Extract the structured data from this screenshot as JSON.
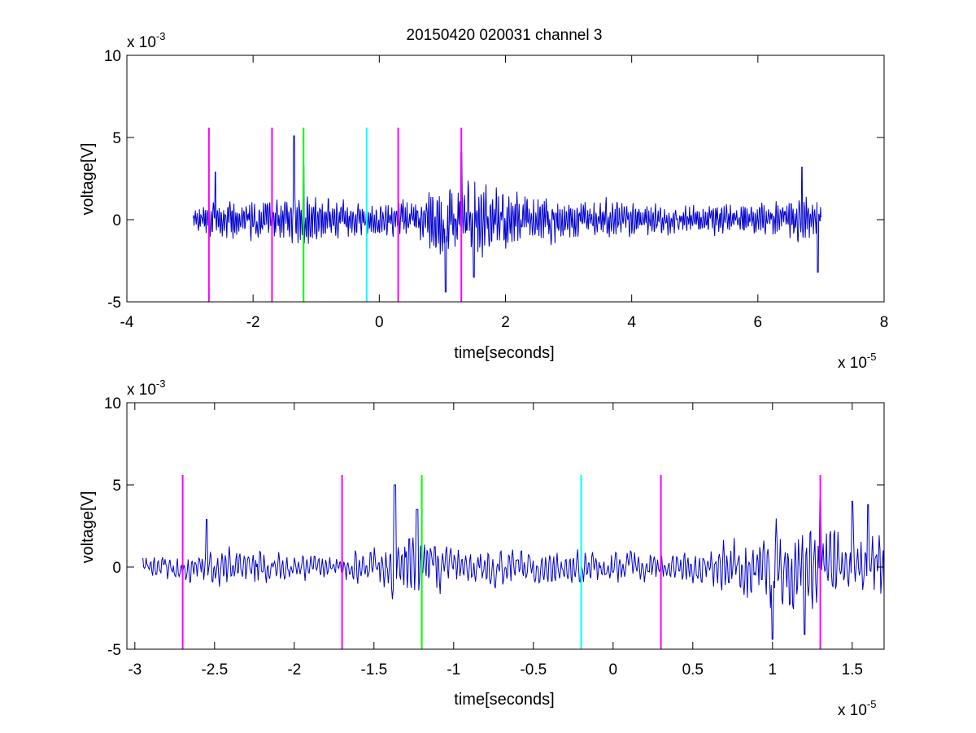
{
  "figure": {
    "title": "20150420 020031 channel 3"
  },
  "chart_data": [
    {
      "type": "line",
      "title": "20150420 020031 channel 3",
      "xlabel": "time[seconds]",
      "ylabel": "voltage[V]",
      "x_multiplier": "x 10",
      "x_multiplier_exp": "-5",
      "y_multiplier": "x 10",
      "y_multiplier_exp": "-3",
      "xlim": [
        -4,
        8
      ],
      "ylim": [
        -5,
        10
      ],
      "xticks": [
        -4,
        -2,
        0,
        2,
        4,
        6,
        8
      ],
      "xtick_labels": [
        "-4",
        "-2",
        "0",
        "2",
        "4",
        "6",
        "8"
      ],
      "yticks": [
        -5,
        0,
        5,
        10
      ],
      "ytick_labels": [
        "-5",
        "0",
        "5",
        "10"
      ],
      "grid": false,
      "series": [
        {
          "color": "#0000cc",
          "x_start": -2.95,
          "x_end": 7.0,
          "envelope": [
            [
              -2.95,
              1.2
            ],
            [
              -2.5,
              2.0
            ],
            [
              -2.0,
              1.8
            ],
            [
              -1.6,
              2.0
            ],
            [
              -1.3,
              2.5
            ],
            [
              -1.0,
              2.2
            ],
            [
              -0.5,
              1.7
            ],
            [
              0.0,
              1.5
            ],
            [
              0.5,
              1.8
            ],
            [
              0.8,
              2.8
            ],
            [
              1.0,
              3.8
            ],
            [
              1.3,
              3.6
            ],
            [
              1.8,
              3.0
            ],
            [
              2.5,
              2.2
            ],
            [
              3.5,
              1.8
            ],
            [
              4.5,
              1.3
            ],
            [
              5.5,
              1.5
            ],
            [
              6.3,
              1.5
            ],
            [
              6.7,
              2.3
            ],
            [
              7.0,
              2.0
            ]
          ],
          "peaks": [
            [
              -2.6,
              2.9
            ],
            [
              -1.35,
              5.1
            ],
            [
              -1.2,
              3.3
            ],
            [
              1.3,
              4.1
            ],
            [
              1.05,
              -4.4
            ],
            [
              1.5,
              -3.5
            ],
            [
              6.7,
              3.2
            ],
            [
              6.95,
              -3.2
            ]
          ]
        }
      ],
      "markers": [
        {
          "x": -2.7,
          "color": "#ff00ff"
        },
        {
          "x": -1.7,
          "color": "#ff00ff"
        },
        {
          "x": -1.2,
          "color": "#00ff00"
        },
        {
          "x": -0.2,
          "color": "#00ffff"
        },
        {
          "x": 0.3,
          "color": "#ff00ff"
        },
        {
          "x": 1.3,
          "color": "#ff00ff"
        }
      ],
      "marker_range": [
        -5,
        5.6
      ]
    },
    {
      "type": "line",
      "title": "",
      "xlabel": "time[seconds]",
      "ylabel": "voltage[V]",
      "x_multiplier": "x 10",
      "x_multiplier_exp": "-5",
      "y_multiplier": "x 10",
      "y_multiplier_exp": "-3",
      "xlim": [
        -3.05,
        1.7
      ],
      "ylim": [
        -5,
        10
      ],
      "xticks": [
        -3,
        -2.5,
        -2,
        -1.5,
        -1,
        -0.5,
        0,
        0.5,
        1,
        1.5
      ],
      "xtick_labels": [
        "-3",
        "-2.5",
        "-2",
        "-1.5",
        "-1",
        "-0.5",
        "0",
        "0.5",
        "1",
        "1.5"
      ],
      "yticks": [
        -5,
        0,
        5,
        10
      ],
      "ytick_labels": [
        "-5",
        "0",
        "5",
        "10"
      ],
      "grid": false,
      "series": [
        {
          "color": "#0000cc",
          "x_start": -2.95,
          "x_end": 1.7,
          "envelope": [
            [
              -2.95,
              1.0
            ],
            [
              -2.6,
              1.5
            ],
            [
              -2.4,
              2.2
            ],
            [
              -2.1,
              1.6
            ],
            [
              -1.8,
              1.0
            ],
            [
              -1.5,
              2.0
            ],
            [
              -1.35,
              3.2
            ],
            [
              -1.2,
              2.8
            ],
            [
              -1.0,
              1.8
            ],
            [
              -0.6,
              1.7
            ],
            [
              -0.2,
              1.5
            ],
            [
              0.1,
              1.4
            ],
            [
              0.4,
              1.3
            ],
            [
              0.7,
              2.4
            ],
            [
              0.9,
              3.5
            ],
            [
              1.0,
              4.2
            ],
            [
              1.2,
              3.8
            ],
            [
              1.4,
              3.8
            ],
            [
              1.7,
              3.0
            ]
          ],
          "peaks": [
            [
              -2.55,
              2.9
            ],
            [
              -1.37,
              5.0
            ],
            [
              -1.23,
              3.5
            ],
            [
              1.3,
              4.1
            ],
            [
              1.0,
              -4.4
            ],
            [
              1.2,
              -4.1
            ],
            [
              1.5,
              4.0
            ],
            [
              1.6,
              3.8
            ]
          ]
        }
      ],
      "markers": [
        {
          "x": -2.7,
          "color": "#ff00ff"
        },
        {
          "x": -1.7,
          "color": "#ff00ff"
        },
        {
          "x": -1.2,
          "color": "#00ff00"
        },
        {
          "x": -0.2,
          "color": "#00ffff"
        },
        {
          "x": 0.3,
          "color": "#ff00ff"
        },
        {
          "x": 1.3,
          "color": "#ff00ff"
        }
      ],
      "marker_range": [
        -5,
        5.6
      ]
    }
  ]
}
